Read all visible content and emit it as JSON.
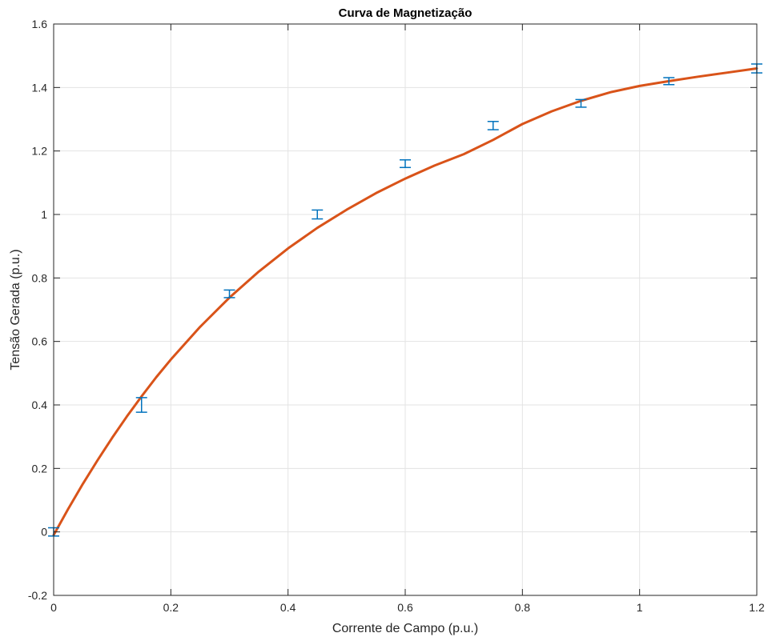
{
  "chart_data": {
    "type": "line",
    "title": "Curva de Magnetização",
    "xlabel": "Corrente de Campo (p.u.)",
    "ylabel": "Tensão Gerada (p.u.)",
    "xlim": [
      0,
      1.2
    ],
    "ylim": [
      -0.2,
      1.6
    ],
    "xticks": [
      0,
      0.2,
      0.4,
      0.6,
      0.8,
      1,
      1.2
    ],
    "xtick_labels": [
      "0",
      "0.2",
      "0.4",
      "0.6",
      "0.8",
      "1",
      "1.2"
    ],
    "yticks": [
      -0.2,
      0,
      0.2,
      0.4,
      0.6,
      0.8,
      1,
      1.2,
      1.4,
      1.6
    ],
    "ytick_labels": [
      "-0.2",
      "0",
      "0.2",
      "0.4",
      "0.6",
      "0.8",
      "1",
      "1.2",
      "1.4",
      "1.6"
    ],
    "grid": true,
    "legend": "none",
    "series": [
      {
        "kind": "errorbar",
        "color": "#0072bd",
        "x": [
          0,
          0.15,
          0.3,
          0.45,
          0.6,
          0.75,
          0.9,
          1.05,
          1.2
        ],
        "y": [
          0,
          0.4,
          0.75,
          1.0,
          1.16,
          1.28,
          1.35,
          1.42,
          1.46
        ],
        "err": [
          0.013,
          0.023,
          0.012,
          0.014,
          0.012,
          0.013,
          0.012,
          0.011,
          0.014
        ]
      },
      {
        "kind": "fit-curve",
        "color": "#d95319",
        "x": [
          0,
          0.025,
          0.05,
          0.075,
          0.1,
          0.125,
          0.15,
          0.175,
          0.2,
          0.25,
          0.3,
          0.35,
          0.4,
          0.45,
          0.5,
          0.55,
          0.6,
          0.65,
          0.7,
          0.75,
          0.8,
          0.85,
          0.9,
          0.95,
          1.0,
          1.05,
          1.1,
          1.15,
          1.2
        ],
        "y": [
          -0.01,
          0.073,
          0.152,
          0.226,
          0.297,
          0.364,
          0.427,
          0.487,
          0.543,
          0.646,
          0.738,
          0.82,
          0.893,
          0.958,
          1.015,
          1.067,
          1.113,
          1.154,
          1.19,
          1.235,
          1.285,
          1.325,
          1.358,
          1.385,
          1.405,
          1.42,
          1.434,
          1.447,
          1.46
        ]
      }
    ]
  }
}
